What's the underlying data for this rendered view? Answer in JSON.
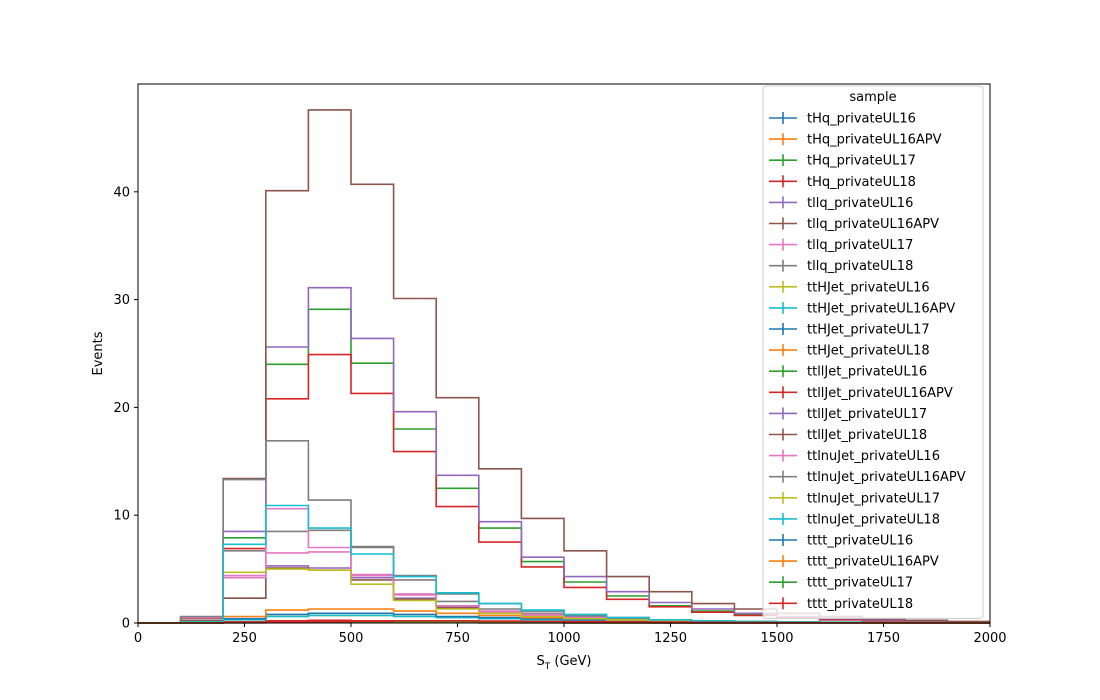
{
  "chart_data": {
    "type": "histogram",
    "xlabel": "S",
    "xlabel_sub": "T",
    "xlabel_unit": " (GeV)",
    "ylabel": "Events",
    "xlim": [
      0,
      2000
    ],
    "ylim": [
      0,
      50
    ],
    "xticks": [
      "0",
      "250",
      "500",
      "750",
      "1000",
      "1250",
      "1500",
      "1750",
      "2000"
    ],
    "yticks": [
      "0",
      "10",
      "20",
      "30",
      "40"
    ],
    "grid": false,
    "legend": {
      "title": "sample",
      "placement": "top-right"
    },
    "bin_edges": [
      0,
      100,
      200,
      300,
      400,
      500,
      600,
      700,
      800,
      900,
      1000,
      1100,
      1200,
      1300,
      1400,
      1500,
      1600,
      1700,
      1800,
      1900,
      2000
    ],
    "series": [
      {
        "name": "tHq_privateUL16",
        "color": "#1f77b4",
        "values": [
          0,
          0.02,
          0.04,
          0.06,
          0.06,
          0.05,
          0.04,
          0.03,
          0.02,
          0.02,
          0.01,
          0.01,
          0.01,
          0,
          0,
          0,
          0,
          0,
          0,
          0
        ]
      },
      {
        "name": "tHq_privateUL16APV",
        "color": "#ff7f0e",
        "values": [
          0,
          0.02,
          0.04,
          0.06,
          0.06,
          0.05,
          0.04,
          0.03,
          0.02,
          0.02,
          0.01,
          0.01,
          0.01,
          0,
          0,
          0,
          0,
          0,
          0,
          0
        ]
      },
      {
        "name": "tHq_privateUL17",
        "color": "#2ca02c",
        "values": [
          0,
          0.04,
          0.08,
          0.12,
          0.12,
          0.1,
          0.08,
          0.06,
          0.04,
          0.03,
          0.02,
          0.02,
          0.01,
          0.01,
          0,
          0,
          0,
          0,
          0,
          0
        ]
      },
      {
        "name": "tHq_privateUL18",
        "color": "#d62728",
        "values": [
          0,
          0.05,
          0.1,
          0.2,
          0.25,
          0.2,
          0.15,
          0.1,
          0.08,
          0.06,
          0.04,
          0.03,
          0.02,
          0.01,
          0.01,
          0,
          0,
          0,
          0,
          0
        ]
      },
      {
        "name": "tllq_privateUL16",
        "color": "#9467bd",
        "values": [
          0,
          0.4,
          2.3,
          5.3,
          5.1,
          4.2,
          2.3,
          1.5,
          1.0,
          0.7,
          0.4,
          0.3,
          0.2,
          0.1,
          0.1,
          0.05,
          0.03,
          0.02,
          0.01,
          0
        ]
      },
      {
        "name": "tllq_privateUL16APV",
        "color": "#8c564b",
        "values": [
          0,
          0.4,
          2.3,
          5.1,
          4.9,
          4.0,
          2.2,
          1.4,
          0.9,
          0.6,
          0.4,
          0.3,
          0.2,
          0.1,
          0.1,
          0.05,
          0.03,
          0.02,
          0.01,
          0
        ]
      },
      {
        "name": "tllq_privateUL17",
        "color": "#e377c2",
        "values": [
          0,
          0.5,
          4.4,
          6.5,
          6.6,
          4.4,
          2.7,
          1.6,
          1.0,
          0.7,
          0.5,
          0.3,
          0.2,
          0.1,
          0.1,
          0.05,
          0.03,
          0.02,
          0.01,
          0
        ]
      },
      {
        "name": "tllq_privateUL18",
        "color": "#7f7f7f",
        "values": [
          0,
          0.6,
          6.7,
          8.5,
          8.6,
          7.0,
          4.0,
          2.0,
          1.3,
          0.9,
          0.6,
          0.4,
          0.3,
          0.2,
          0.1,
          0.1,
          0.05,
          0.03,
          0.02,
          0.01
        ]
      },
      {
        "name": "ttHJet_privateUL16",
        "color": "#bcbd22",
        "values": [
          0,
          0.02,
          0.3,
          0.6,
          0.7,
          0.7,
          0.6,
          0.5,
          0.4,
          0.3,
          0.2,
          0.15,
          0.1,
          0.07,
          0.05,
          0.03,
          0.02,
          0.01,
          0.01,
          0
        ]
      },
      {
        "name": "ttHJet_privateUL16APV",
        "color": "#17becf",
        "values": [
          0,
          0.02,
          0.3,
          0.6,
          0.7,
          0.7,
          0.6,
          0.5,
          0.4,
          0.3,
          0.2,
          0.15,
          0.1,
          0.07,
          0.05,
          0.03,
          0.02,
          0.01,
          0.01,
          0
        ]
      },
      {
        "name": "ttHJet_privateUL17",
        "color": "#1f77b4",
        "values": [
          0,
          0.03,
          0.4,
          0.8,
          0.9,
          0.9,
          0.8,
          0.6,
          0.5,
          0.4,
          0.3,
          0.2,
          0.15,
          0.1,
          0.07,
          0.05,
          0.03,
          0.02,
          0.01,
          0
        ]
      },
      {
        "name": "ttHJet_privateUL18",
        "color": "#ff7f0e",
        "values": [
          0,
          0.04,
          0.6,
          1.2,
          1.3,
          1.3,
          1.1,
          0.9,
          0.7,
          0.5,
          0.4,
          0.3,
          0.2,
          0.15,
          0.1,
          0.07,
          0.05,
          0.03,
          0.02,
          0.01
        ]
      },
      {
        "name": "ttllJet_privateUL16",
        "color": "#2ca02c",
        "values": [
          0,
          0.1,
          7.9,
          24.0,
          29.1,
          24.1,
          18.0,
          12.5,
          8.8,
          5.7,
          3.8,
          2.5,
          1.6,
          1.1,
          0.8,
          0.5,
          0.3,
          0.2,
          0.15,
          0.1
        ]
      },
      {
        "name": "ttllJet_privateUL16APV",
        "color": "#d62728",
        "values": [
          0,
          0.1,
          6.9,
          20.8,
          24.9,
          21.3,
          15.9,
          10.8,
          7.5,
          5.2,
          3.3,
          2.2,
          1.5,
          1.0,
          0.7,
          0.5,
          0.3,
          0.2,
          0.15,
          0.1
        ]
      },
      {
        "name": "ttllJet_privateUL17",
        "color": "#9467bd",
        "values": [
          0,
          0.1,
          8.5,
          25.6,
          31.1,
          26.4,
          19.6,
          13.7,
          9.4,
          6.1,
          4.3,
          2.9,
          1.9,
          1.3,
          0.9,
          0.6,
          0.4,
          0.3,
          0.2,
          0.1
        ]
      },
      {
        "name": "ttllJet_privateUL18",
        "color": "#8c564b",
        "values": [
          0,
          0.2,
          13.4,
          40.1,
          47.6,
          40.7,
          30.1,
          20.9,
          14.3,
          9.7,
          6.7,
          4.3,
          2.9,
          1.8,
          1.3,
          0.9,
          0.6,
          0.4,
          0.25,
          0.15
        ]
      },
      {
        "name": "ttlnuJet_privateUL16",
        "color": "#e377c2",
        "values": [
          0,
          0.1,
          4.2,
          10.6,
          7.0,
          4.5,
          2.6,
          1.6,
          1.1,
          0.8,
          0.5,
          0.3,
          0.2,
          0.15,
          0.1,
          0.07,
          0.05,
          0.03,
          0.02,
          0.01
        ]
      },
      {
        "name": "ttlnuJet_privateUL16APV",
        "color": "#7f7f7f",
        "values": [
          0,
          0.1,
          13.3,
          16.9,
          11.4,
          7.1,
          4.4,
          2.7,
          1.8,
          1.1,
          0.7,
          0.5,
          0.3,
          0.2,
          0.15,
          0.1,
          0.07,
          0.05,
          0.03,
          0.02
        ]
      },
      {
        "name": "ttlnuJet_privateUL17",
        "color": "#bcbd22",
        "values": [
          0,
          0.1,
          4.7,
          5.0,
          4.9,
          3.6,
          2.1,
          1.3,
          0.9,
          0.6,
          0.4,
          0.3,
          0.2,
          0.15,
          0.1,
          0.07,
          0.05,
          0.03,
          0.02,
          0.01
        ]
      },
      {
        "name": "ttlnuJet_privateUL18",
        "color": "#17becf",
        "values": [
          0,
          0.1,
          7.3,
          10.9,
          8.8,
          6.4,
          4.3,
          2.8,
          1.8,
          1.2,
          0.8,
          0.5,
          0.3,
          0.2,
          0.15,
          0.1,
          0.07,
          0.05,
          0.03,
          0.02
        ]
      },
      {
        "name": "tttt_privateUL16",
        "color": "#1f77b4",
        "values": [
          0,
          0.01,
          0.02,
          0.05,
          0.08,
          0.1,
          0.12,
          0.12,
          0.11,
          0.1,
          0.09,
          0.07,
          0.05,
          0.04,
          0.03,
          0.02,
          0.02,
          0.01,
          0.01,
          0.01
        ]
      },
      {
        "name": "tttt_privateUL16APV",
        "color": "#ff7f0e",
        "values": [
          0,
          0.01,
          0.02,
          0.05,
          0.08,
          0.1,
          0.12,
          0.12,
          0.11,
          0.1,
          0.09,
          0.07,
          0.05,
          0.04,
          0.03,
          0.02,
          0.02,
          0.01,
          0.01,
          0.01
        ]
      },
      {
        "name": "tttt_privateUL17",
        "color": "#2ca02c",
        "values": [
          0,
          0.01,
          0.03,
          0.06,
          0.1,
          0.13,
          0.15,
          0.15,
          0.14,
          0.12,
          0.1,
          0.08,
          0.06,
          0.05,
          0.04,
          0.03,
          0.02,
          0.01,
          0.01,
          0.01
        ]
      },
      {
        "name": "tttt_privateUL18",
        "color": "#d62728",
        "values": [
          0,
          0.01,
          0.04,
          0.08,
          0.13,
          0.17,
          0.2,
          0.2,
          0.18,
          0.15,
          0.12,
          0.1,
          0.08,
          0.06,
          0.05,
          0.03,
          0.02,
          0.02,
          0.01,
          0.01
        ]
      }
    ]
  }
}
